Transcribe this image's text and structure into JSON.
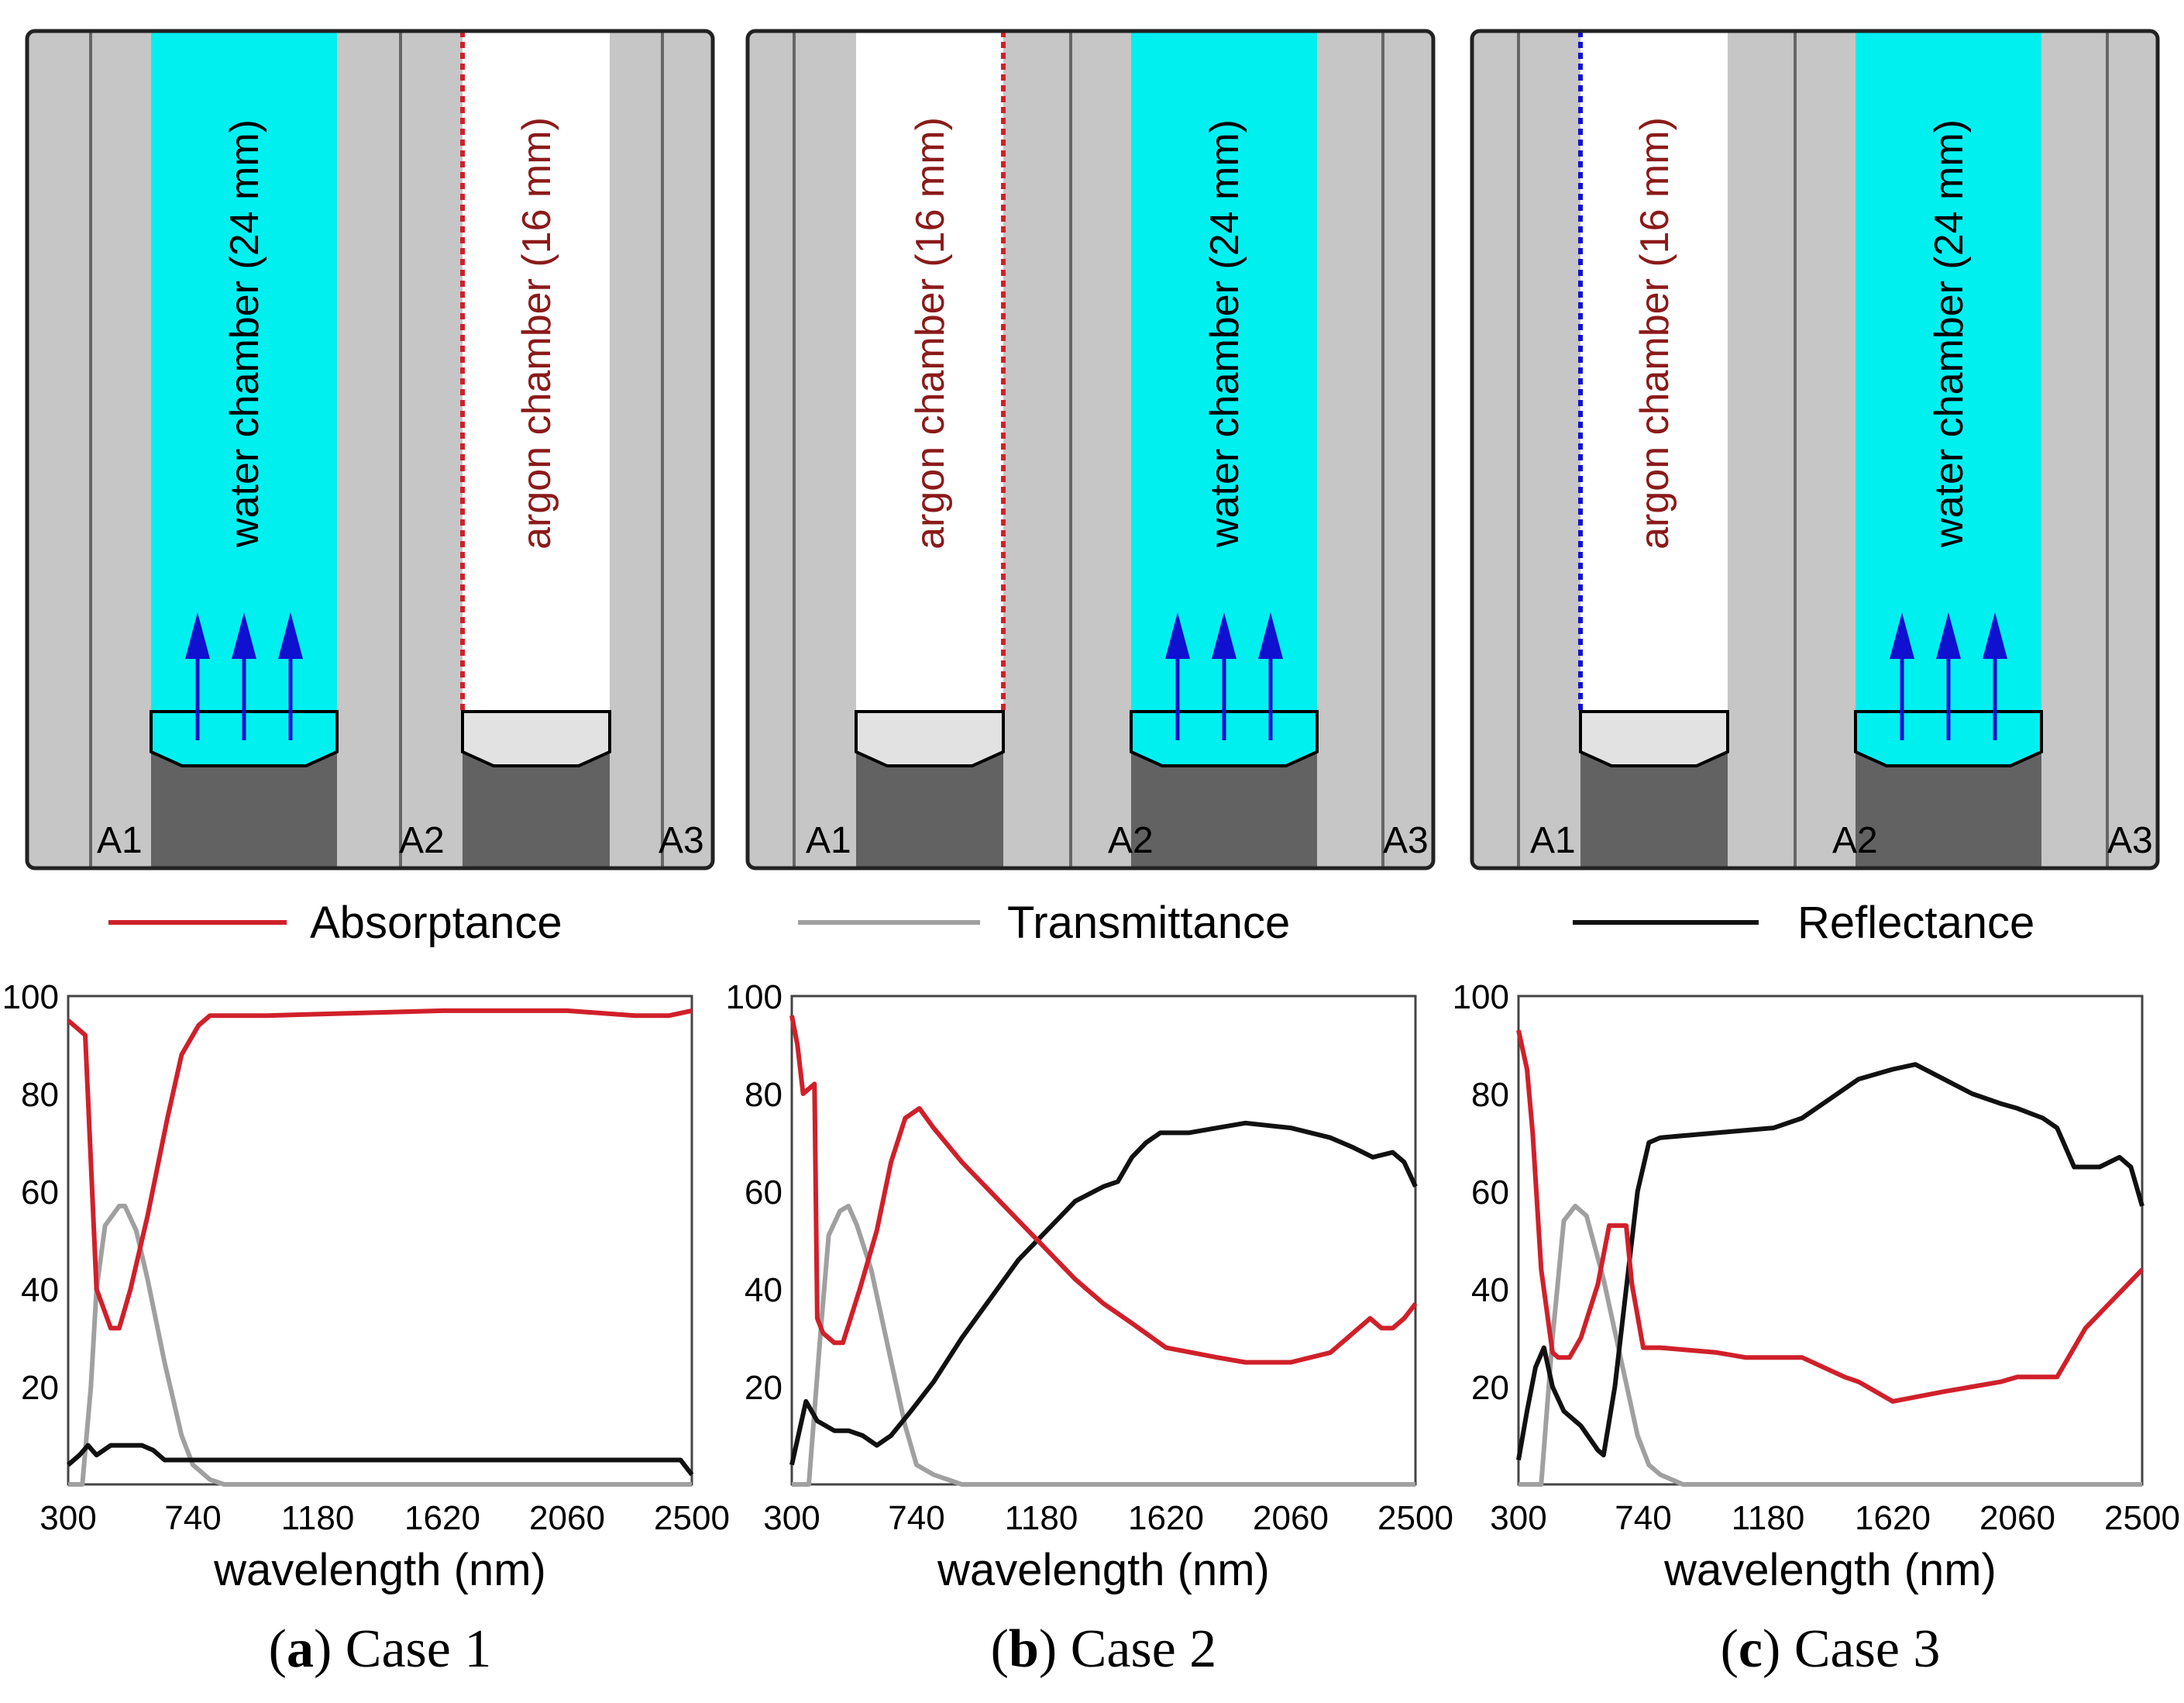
{
  "colors": {
    "absorptance": "#d0202a",
    "transmittance": "#a0a0a0",
    "reflectance": "#111111",
    "glass": "#c6c6c6",
    "water": "#00f0f0",
    "argon": "#ffffff",
    "frame": "#626262",
    "gas_label": "#8b1a1a",
    "arrow": "#1010d0"
  },
  "legend": {
    "absorptance": "Absorptance",
    "transmittance": "Transmittance",
    "reflectance": "Reflectance"
  },
  "panels": [
    {
      "id": "a",
      "caption_letter": "a",
      "caption_text": "Case 1",
      "schematic": {
        "layers": [
          "glass",
          "water",
          "glass",
          "argon",
          "glass"
        ],
        "water_label": "water chamber (24 mm)",
        "argon_label": "argon chamber (16 mm)",
        "pane_labels": [
          "A1",
          "A2",
          "A3"
        ],
        "coated_surface_color": "#d0202a"
      }
    },
    {
      "id": "b",
      "caption_letter": "b",
      "caption_text": "Case 2",
      "schematic": {
        "layers": [
          "glass",
          "argon",
          "glass",
          "water",
          "glass"
        ],
        "water_label": "water chamber (24 mm)",
        "argon_label": "argon chamber (16 mm)",
        "pane_labels": [
          "A1",
          "A2",
          "A3"
        ],
        "coated_surface_color": "#d0202a"
      }
    },
    {
      "id": "c",
      "caption_letter": "c",
      "caption_text": "Case 3",
      "schematic": {
        "layers": [
          "glass",
          "argon",
          "glass",
          "water",
          "glass"
        ],
        "water_label": "water chamber (24 mm)",
        "argon_label": "argon chamber (16 mm)",
        "pane_labels": [
          "A1",
          "A2",
          "A3"
        ],
        "coated_surface_color": "#1010d0"
      }
    }
  ],
  "chart_data": [
    {
      "type": "line",
      "title": "Case 1",
      "xlabel": "wavelength (nm)",
      "ylabel": "",
      "xlim": [
        300,
        2500
      ],
      "ylim": [
        0,
        100
      ],
      "xticks": [
        300,
        740,
        1180,
        1620,
        2060,
        2500
      ],
      "yticks": [
        20,
        40,
        60,
        80,
        100
      ],
      "series": [
        {
          "name": "Absorptance",
          "color_key": "absorptance",
          "points": [
            [
              300,
              95
            ],
            [
              360,
              92
            ],
            [
              400,
              40
            ],
            [
              450,
              32
            ],
            [
              480,
              32
            ],
            [
              520,
              40
            ],
            [
              580,
              55
            ],
            [
              650,
              75
            ],
            [
              700,
              88
            ],
            [
              760,
              94
            ],
            [
              800,
              96
            ],
            [
              1000,
              96
            ],
            [
              1620,
              97
            ],
            [
              2060,
              97
            ],
            [
              2300,
              96
            ],
            [
              2420,
              96
            ],
            [
              2500,
              97
            ]
          ]
        },
        {
          "name": "Transmittance",
          "color_key": "transmittance",
          "points": [
            [
              300,
              0
            ],
            [
              350,
              0
            ],
            [
              380,
              20
            ],
            [
              400,
              40
            ],
            [
              430,
              53
            ],
            [
              480,
              57
            ],
            [
              500,
              57
            ],
            [
              540,
              52
            ],
            [
              580,
              42
            ],
            [
              640,
              25
            ],
            [
              700,
              10
            ],
            [
              740,
              4
            ],
            [
              800,
              1
            ],
            [
              850,
              0
            ],
            [
              2500,
              0
            ]
          ]
        },
        {
          "name": "Reflectance",
          "color_key": "reflectance",
          "points": [
            [
              300,
              4
            ],
            [
              340,
              6
            ],
            [
              370,
              8
            ],
            [
              400,
              6
            ],
            [
              450,
              8
            ],
            [
              560,
              8
            ],
            [
              600,
              7
            ],
            [
              640,
              5
            ],
            [
              700,
              5
            ],
            [
              1000,
              5
            ],
            [
              2060,
              5
            ],
            [
              2460,
              5
            ],
            [
              2500,
              2
            ]
          ]
        }
      ]
    },
    {
      "type": "line",
      "title": "Case 2",
      "xlabel": "wavelength (nm)",
      "ylabel": "",
      "xlim": [
        300,
        2500
      ],
      "ylim": [
        0,
        100
      ],
      "xticks": [
        300,
        740,
        1180,
        1620,
        2060,
        2500
      ],
      "yticks": [
        20,
        40,
        60,
        80,
        100
      ],
      "series": [
        {
          "name": "Absorptance",
          "color_key": "absorptance",
          "points": [
            [
              300,
              96
            ],
            [
              320,
              90
            ],
            [
              340,
              80
            ],
            [
              360,
              81
            ],
            [
              380,
              82
            ],
            [
              390,
              34
            ],
            [
              410,
              31
            ],
            [
              450,
              29
            ],
            [
              480,
              29
            ],
            [
              540,
              40
            ],
            [
              600,
              52
            ],
            [
              650,
              66
            ],
            [
              700,
              75
            ],
            [
              750,
              77
            ],
            [
              800,
              73
            ],
            [
              900,
              66
            ],
            [
              1000,
              60
            ],
            [
              1100,
              54
            ],
            [
              1200,
              48
            ],
            [
              1300,
              42
            ],
            [
              1400,
              37
            ],
            [
              1500,
              33
            ],
            [
              1620,
              28
            ],
            [
              1800,
              26
            ],
            [
              1900,
              25
            ],
            [
              2060,
              25
            ],
            [
              2200,
              27
            ],
            [
              2260,
              30
            ],
            [
              2300,
              32
            ],
            [
              2340,
              34
            ],
            [
              2380,
              32
            ],
            [
              2420,
              32
            ],
            [
              2460,
              34
            ],
            [
              2500,
              37
            ]
          ]
        },
        {
          "name": "Transmittance",
          "color_key": "transmittance",
          "points": [
            [
              300,
              0
            ],
            [
              360,
              0
            ],
            [
              400,
              30
            ],
            [
              430,
              51
            ],
            [
              470,
              56
            ],
            [
              500,
              57
            ],
            [
              530,
              53
            ],
            [
              580,
              44
            ],
            [
              640,
              28
            ],
            [
              700,
              12
            ],
            [
              740,
              4
            ],
            [
              800,
              2
            ],
            [
              900,
              0
            ],
            [
              2500,
              0
            ]
          ]
        },
        {
          "name": "Reflectance",
          "color_key": "reflectance",
          "points": [
            [
              300,
              4
            ],
            [
              350,
              17
            ],
            [
              390,
              13
            ],
            [
              450,
              11
            ],
            [
              500,
              11
            ],
            [
              550,
              10
            ],
            [
              600,
              8
            ],
            [
              650,
              10
            ],
            [
              720,
              15
            ],
            [
              800,
              21
            ],
            [
              900,
              30
            ],
            [
              1000,
              38
            ],
            [
              1100,
              46
            ],
            [
              1200,
              52
            ],
            [
              1300,
              58
            ],
            [
              1400,
              61
            ],
            [
              1450,
              62
            ],
            [
              1500,
              67
            ],
            [
              1550,
              70
            ],
            [
              1600,
              72
            ],
            [
              1700,
              72
            ],
            [
              1800,
              73
            ],
            [
              1900,
              74
            ],
            [
              2060,
              73
            ],
            [
              2200,
              71
            ],
            [
              2280,
              69
            ],
            [
              2350,
              67
            ],
            [
              2420,
              68
            ],
            [
              2460,
              66
            ],
            [
              2500,
              61
            ]
          ]
        }
      ]
    },
    {
      "type": "line",
      "title": "Case 3",
      "xlabel": "wavelength (nm)",
      "ylabel": "",
      "xlim": [
        300,
        2500
      ],
      "ylim": [
        0,
        100
      ],
      "xticks": [
        300,
        740,
        1180,
        1620,
        2060,
        2500
      ],
      "yticks": [
        20,
        40,
        60,
        80,
        100
      ],
      "series": [
        {
          "name": "Absorptance",
          "color_key": "absorptance",
          "points": [
            [
              300,
              93
            ],
            [
              330,
              85
            ],
            [
              350,
              72
            ],
            [
              380,
              44
            ],
            [
              420,
              27
            ],
            [
              440,
              26
            ],
            [
              480,
              26
            ],
            [
              520,
              30
            ],
            [
              580,
              41
            ],
            [
              620,
              53
            ],
            [
              640,
              53
            ],
            [
              680,
              53
            ],
            [
              700,
              41
            ],
            [
              740,
              28
            ],
            [
              800,
              28
            ],
            [
              1000,
              27
            ],
            [
              1100,
              26
            ],
            [
              1300,
              26
            ],
            [
              1450,
              22
            ],
            [
              1500,
              21
            ],
            [
              1620,
              17
            ],
            [
              1800,
              19
            ],
            [
              1900,
              20
            ],
            [
              2000,
              21
            ],
            [
              2060,
              22
            ],
            [
              2200,
              22
            ],
            [
              2260,
              28
            ],
            [
              2300,
              32
            ],
            [
              2400,
              38
            ],
            [
              2500,
              44
            ]
          ]
        },
        {
          "name": "Transmittance",
          "color_key": "transmittance",
          "points": [
            [
              300,
              0
            ],
            [
              380,
              0
            ],
            [
              420,
              30
            ],
            [
              460,
              54
            ],
            [
              500,
              57
            ],
            [
              540,
              55
            ],
            [
              600,
              42
            ],
            [
              660,
              26
            ],
            [
              720,
              10
            ],
            [
              760,
              4
            ],
            [
              800,
              2
            ],
            [
              880,
              0
            ],
            [
              2500,
              0
            ]
          ]
        },
        {
          "name": "Reflectance",
          "color_key": "reflectance",
          "points": [
            [
              300,
              5
            ],
            [
              330,
              15
            ],
            [
              360,
              24
            ],
            [
              390,
              28
            ],
            [
              420,
              20
            ],
            [
              460,
              15
            ],
            [
              520,
              12
            ],
            [
              580,
              7
            ],
            [
              600,
              6
            ],
            [
              640,
              20
            ],
            [
              680,
              40
            ],
            [
              720,
              60
            ],
            [
              760,
              70
            ],
            [
              800,
              71
            ],
            [
              1000,
              72
            ],
            [
              1200,
              73
            ],
            [
              1300,
              75
            ],
            [
              1400,
              79
            ],
            [
              1500,
              83
            ],
            [
              1620,
              85
            ],
            [
              1700,
              86
            ],
            [
              1800,
              83
            ],
            [
              1900,
              80
            ],
            [
              2000,
              78
            ],
            [
              2060,
              77
            ],
            [
              2150,
              75
            ],
            [
              2200,
              73
            ],
            [
              2260,
              65
            ],
            [
              2350,
              65
            ],
            [
              2420,
              67
            ],
            [
              2460,
              65
            ],
            [
              2500,
              57
            ]
          ]
        }
      ]
    }
  ]
}
